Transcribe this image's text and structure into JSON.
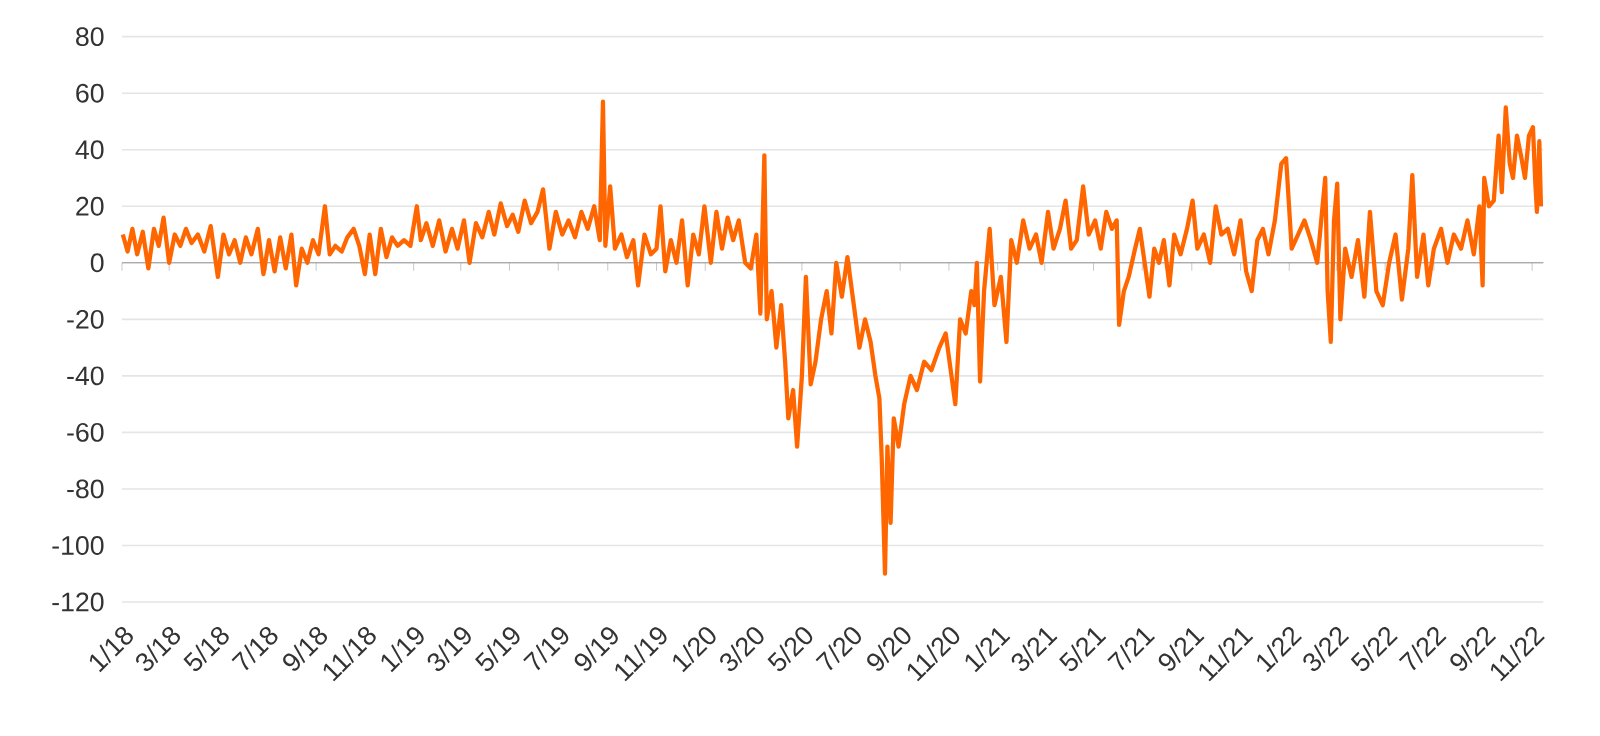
{
  "chart_data": {
    "type": "line",
    "color": "#ff6600",
    "grid": "y",
    "xlim": [
      "2018-01-01",
      "2022-11-15"
    ],
    "ylim": [
      -120,
      80
    ],
    "yticks": [
      -120,
      -100,
      -80,
      -60,
      -40,
      -20,
      0,
      20,
      40,
      60,
      80
    ],
    "xticks": [
      {
        "value": "2018-01",
        "label": "1/18"
      },
      {
        "value": "2018-03",
        "label": "3/18"
      },
      {
        "value": "2018-05",
        "label": "5/18"
      },
      {
        "value": "2018-07",
        "label": "7/18"
      },
      {
        "value": "2018-09",
        "label": "9/18"
      },
      {
        "value": "2018-11",
        "label": "11/18"
      },
      {
        "value": "2019-01",
        "label": "1/19"
      },
      {
        "value": "2019-03",
        "label": "3/19"
      },
      {
        "value": "2019-05",
        "label": "5/19"
      },
      {
        "value": "2019-07",
        "label": "7/19"
      },
      {
        "value": "2019-09",
        "label": "9/19"
      },
      {
        "value": "2019-11",
        "label": "11/19"
      },
      {
        "value": "2020-01",
        "label": "1/20"
      },
      {
        "value": "2020-03",
        "label": "3/20"
      },
      {
        "value": "2020-05",
        "label": "5/20"
      },
      {
        "value": "2020-07",
        "label": "7/20"
      },
      {
        "value": "2020-09",
        "label": "9/20"
      },
      {
        "value": "2020-11",
        "label": "11/20"
      },
      {
        "value": "2021-01",
        "label": "1/21"
      },
      {
        "value": "2021-03",
        "label": "3/21"
      },
      {
        "value": "2021-05",
        "label": "5/21"
      },
      {
        "value": "2021-07",
        "label": "7/21"
      },
      {
        "value": "2021-09",
        "label": "9/21"
      },
      {
        "value": "2021-11",
        "label": "11/21"
      },
      {
        "value": "2022-01",
        "label": "1/22"
      },
      {
        "value": "2022-03",
        "label": "3/22"
      },
      {
        "value": "2022-05",
        "label": "5/22"
      },
      {
        "value": "2022-07",
        "label": "7/22"
      },
      {
        "value": "2022-09",
        "label": "9/22"
      },
      {
        "value": "2022-11",
        "label": "11/22"
      }
    ],
    "x": [
      "2018-01-02",
      "2018-01-08",
      "2018-01-14",
      "2018-01-20",
      "2018-01-27",
      "2018-02-03",
      "2018-02-10",
      "2018-02-16",
      "2018-02-22",
      "2018-03-01",
      "2018-03-08",
      "2018-03-15",
      "2018-03-22",
      "2018-03-29",
      "2018-04-06",
      "2018-04-14",
      "2018-04-22",
      "2018-05-01",
      "2018-05-08",
      "2018-05-15",
      "2018-05-22",
      "2018-05-29",
      "2018-06-05",
      "2018-06-12",
      "2018-06-20",
      "2018-06-27",
      "2018-07-04",
      "2018-07-11",
      "2018-07-18",
      "2018-07-25",
      "2018-08-01",
      "2018-08-07",
      "2018-08-14",
      "2018-08-21",
      "2018-08-28",
      "2018-09-04",
      "2018-09-12",
      "2018-09-18",
      "2018-09-25",
      "2018-10-03",
      "2018-10-10",
      "2018-10-18",
      "2018-10-25",
      "2018-11-01",
      "2018-11-07",
      "2018-11-14",
      "2018-11-21",
      "2018-11-28",
      "2018-12-05",
      "2018-12-12",
      "2018-12-20",
      "2018-12-28",
      "2019-01-05",
      "2019-01-10",
      "2019-01-17",
      "2019-01-25",
      "2019-02-02",
      "2019-02-10",
      "2019-02-18",
      "2019-02-25",
      "2019-03-05",
      "2019-03-12",
      "2019-03-20",
      "2019-03-28",
      "2019-04-05",
      "2019-04-12",
      "2019-04-20",
      "2019-04-28",
      "2019-05-05",
      "2019-05-12",
      "2019-05-20",
      "2019-05-28",
      "2019-06-05",
      "2019-06-12",
      "2019-06-20",
      "2019-06-28",
      "2019-07-06",
      "2019-07-14",
      "2019-07-22",
      "2019-07-30",
      "2019-08-07",
      "2019-08-15",
      "2019-08-22",
      "2019-08-26",
      "2019-08-29",
      "2019-09-04",
      "2019-09-10",
      "2019-09-18",
      "2019-09-25",
      "2019-10-03",
      "2019-10-09",
      "2019-10-17",
      "2019-10-25",
      "2019-11-01",
      "2019-11-06",
      "2019-11-12",
      "2019-11-19",
      "2019-11-26",
      "2019-12-03",
      "2019-12-10",
      "2019-12-17",
      "2019-12-24",
      "2019-12-31",
      "2020-01-08",
      "2020-01-15",
      "2020-01-22",
      "2020-01-29",
      "2020-02-05",
      "2020-02-12",
      "2020-02-20",
      "2020-02-27",
      "2020-03-05",
      "2020-03-10",
      "2020-03-15",
      "2020-03-18",
      "2020-03-24",
      "2020-03-30",
      "2020-04-05",
      "2020-04-10",
      "2020-04-14",
      "2020-04-20",
      "2020-04-25",
      "2020-05-01",
      "2020-05-06",
      "2020-05-12",
      "2020-05-18",
      "2020-05-25",
      "2020-06-01",
      "2020-06-07",
      "2020-06-13",
      "2020-06-20",
      "2020-06-27",
      "2020-07-05",
      "2020-07-12",
      "2020-07-19",
      "2020-07-26",
      "2020-08-01",
      "2020-08-06",
      "2020-08-09",
      "2020-08-13",
      "2020-08-16",
      "2020-08-20",
      "2020-08-24",
      "2020-08-30",
      "2020-09-06",
      "2020-09-14",
      "2020-09-22",
      "2020-10-01",
      "2020-10-10",
      "2020-10-20",
      "2020-10-28",
      "2020-11-09",
      "2020-11-15",
      "2020-11-22",
      "2020-11-29",
      "2020-12-03",
      "2020-12-06",
      "2020-12-10",
      "2020-12-15",
      "2020-12-22",
      "2020-12-28",
      "2021-01-05",
      "2021-01-12",
      "2021-01-18",
      "2021-01-25",
      "2021-02-02",
      "2021-02-10",
      "2021-02-18",
      "2021-02-25",
      "2021-03-05",
      "2021-03-12",
      "2021-03-20",
      "2021-03-27",
      "2021-04-03",
      "2021-04-10",
      "2021-04-18",
      "2021-04-25",
      "2021-05-03",
      "2021-05-10",
      "2021-05-17",
      "2021-05-24",
      "2021-05-30",
      "2021-06-02",
      "2021-06-08",
      "2021-06-14",
      "2021-06-22",
      "2021-06-28",
      "2021-07-04",
      "2021-07-10",
      "2021-07-16",
      "2021-07-22",
      "2021-07-28",
      "2021-08-04",
      "2021-08-10",
      "2021-08-18",
      "2021-08-26",
      "2021-09-02",
      "2021-09-08",
      "2021-09-16",
      "2021-09-24",
      "2021-10-01",
      "2021-10-08",
      "2021-10-16",
      "2021-10-24",
      "2021-11-01",
      "2021-11-08",
      "2021-11-15",
      "2021-11-22",
      "2021-11-29",
      "2021-12-06",
      "2021-12-14",
      "2021-12-22",
      "2021-12-28",
      "2022-01-04",
      "2022-01-12",
      "2022-01-20",
      "2022-01-28",
      "2022-02-05",
      "2022-02-15",
      "2022-02-18",
      "2022-02-22",
      "2022-02-26",
      "2022-03-02",
      "2022-03-06",
      "2022-03-12",
      "2022-03-20",
      "2022-03-28",
      "2022-04-05",
      "2022-04-12",
      "2022-04-20",
      "2022-04-28",
      "2022-05-06",
      "2022-05-14",
      "2022-05-22",
      "2022-05-30",
      "2022-06-04",
      "2022-06-10",
      "2022-06-18",
      "2022-06-24",
      "2022-07-01",
      "2022-07-10",
      "2022-07-18",
      "2022-07-26",
      "2022-08-04",
      "2022-08-12",
      "2022-08-20",
      "2022-08-27",
      "2022-08-31",
      "2022-09-02",
      "2022-09-08",
      "2022-09-14",
      "2022-09-20",
      "2022-09-24",
      "2022-09-29",
      "2022-10-04",
      "2022-10-08",
      "2022-10-13",
      "2022-10-18",
      "2022-10-23",
      "2022-10-28",
      "2022-11-02",
      "2022-11-05",
      "2022-11-07",
      "2022-11-10",
      "2022-11-12"
    ],
    "values": [
      10,
      4,
      12,
      3,
      11,
      -2,
      12,
      6,
      16,
      0,
      10,
      6,
      12,
      7,
      10,
      4,
      13,
      -5,
      10,
      3,
      8,
      0,
      9,
      3,
      12,
      -4,
      8,
      -3,
      9,
      -2,
      10,
      -8,
      5,
      0,
      8,
      3,
      20,
      3,
      6,
      4,
      9,
      12,
      6,
      -4,
      10,
      -4,
      12,
      2,
      9,
      6,
      8,
      6,
      20,
      8,
      14,
      6,
      15,
      4,
      12,
      5,
      15,
      0,
      14,
      9,
      18,
      10,
      21,
      13,
      17,
      11,
      22,
      14,
      18,
      26,
      5,
      18,
      10,
      15,
      9,
      18,
      12,
      20,
      8,
      57,
      6,
      27,
      5,
      10,
      2,
      8,
      -8,
      10,
      3,
      5,
      20,
      -3,
      8,
      0,
      15,
      -8,
      10,
      3,
      20,
      0,
      18,
      5,
      16,
      8,
      15,
      0,
      -2,
      10,
      -18,
      38,
      -20,
      -10,
      -30,
      -15,
      -35,
      -55,
      -45,
      -65,
      -40,
      -5,
      -43,
      -35,
      -20,
      -10,
      -25,
      0,
      -12,
      2,
      -15,
      -30,
      -20,
      -28,
      -40,
      -48,
      -70,
      -110,
      -65,
      -92,
      -55,
      -65,
      -50,
      -40,
      -45,
      -35,
      -38,
      -30,
      -25,
      -50,
      -20,
      -25,
      -10,
      -15,
      0,
      -42,
      -10,
      12,
      -15,
      -5,
      -28,
      8,
      0,
      15,
      5,
      10,
      0,
      18,
      5,
      12,
      22,
      5,
      8,
      27,
      10,
      15,
      5,
      18,
      12,
      15,
      -22,
      -10,
      -5,
      5,
      12,
      0,
      -12,
      5,
      0,
      8,
      -8,
      10,
      3,
      12,
      22,
      5,
      10,
      0,
      20,
      10,
      12,
      3,
      15,
      -3,
      -10,
      8,
      12,
      3,
      15,
      35,
      37,
      5,
      10,
      15,
      8,
      0,
      30,
      -10,
      -28,
      15,
      28,
      -20,
      5,
      -5,
      8,
      -12,
      18,
      -10,
      -15,
      0,
      10,
      -13,
      5,
      31,
      -5,
      10,
      -8,
      5,
      12,
      0,
      10,
      5,
      15,
      3,
      20,
      -8,
      30,
      20,
      22,
      45,
      25,
      55,
      35,
      30,
      45,
      38,
      30,
      45,
      48,
      28,
      18,
      43,
      20
    ]
  }
}
